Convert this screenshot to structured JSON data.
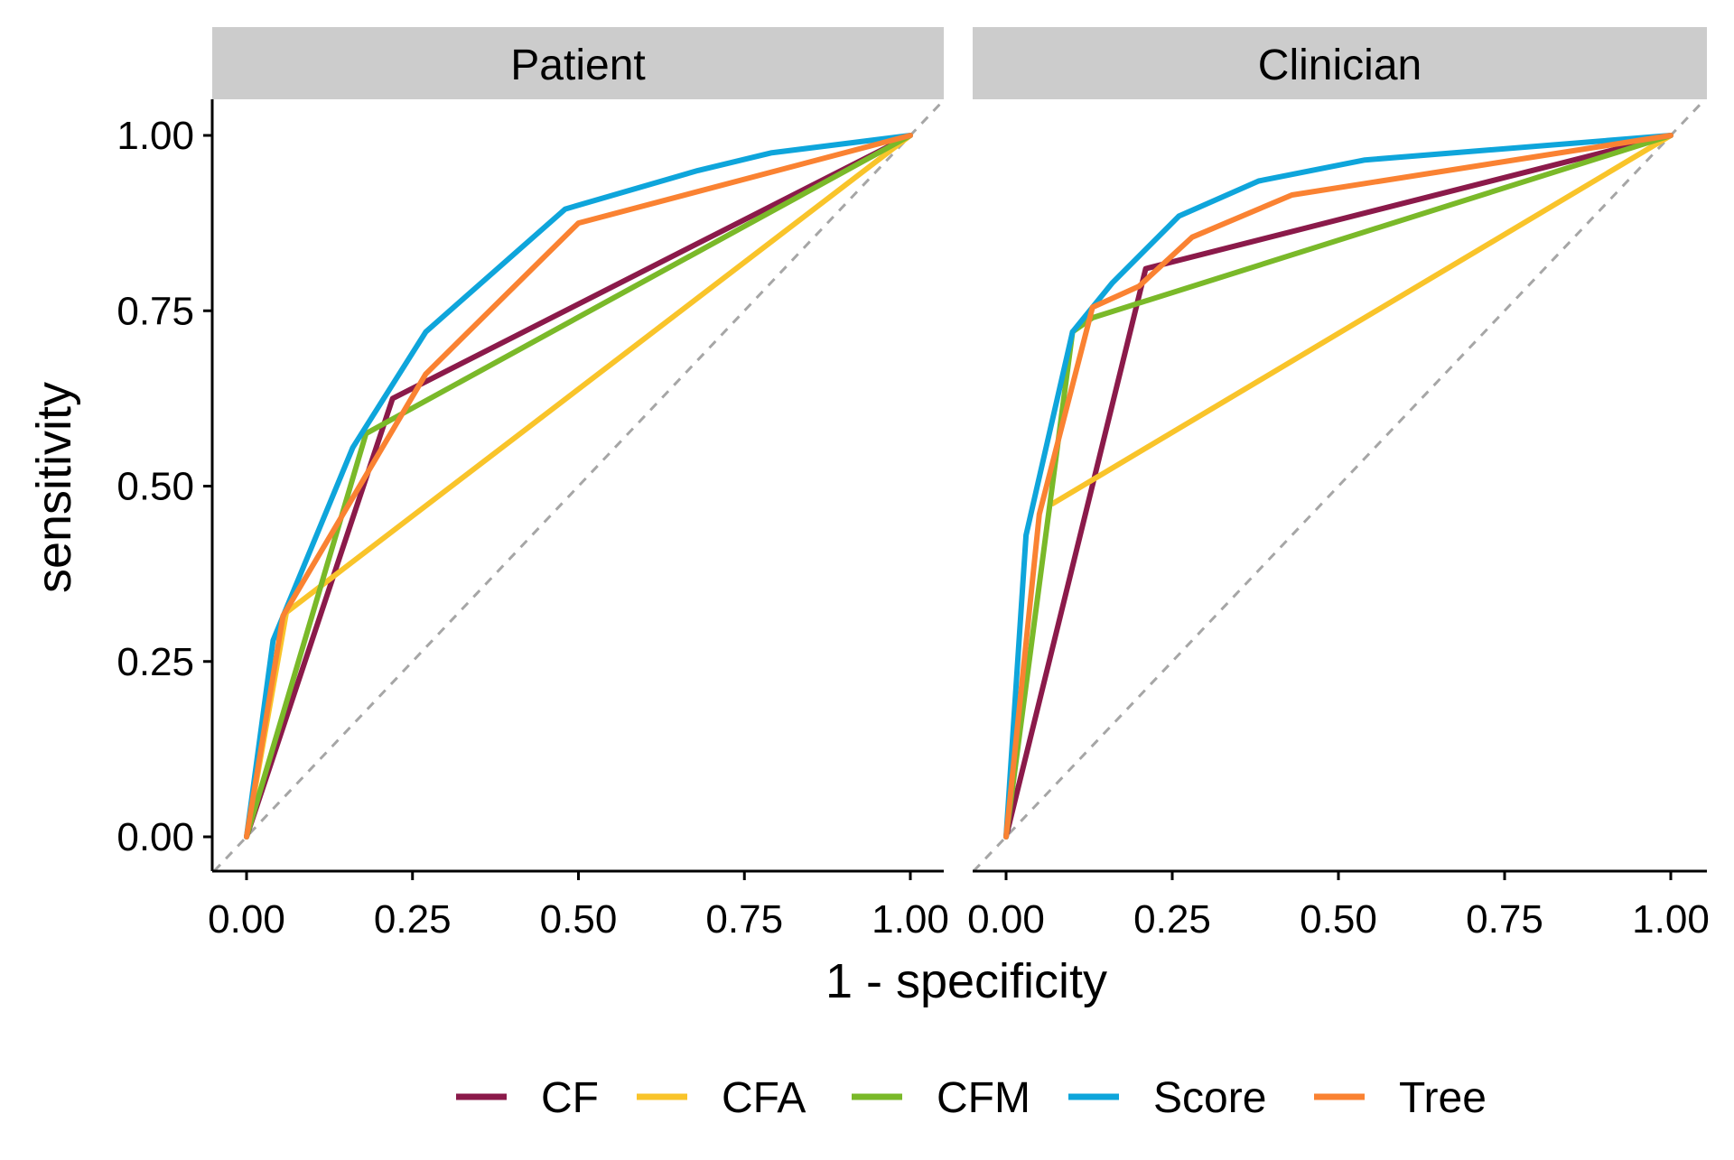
{
  "chart_data": {
    "type": "line",
    "xlabel": "1 - specificity",
    "ylabel": "sensitivity",
    "xlim": [
      0,
      1
    ],
    "ylim": [
      0,
      1
    ],
    "x_ticks": [
      "0.00",
      "0.25",
      "0.50",
      "0.75",
      "1.00"
    ],
    "y_ticks": [
      "0.00",
      "0.25",
      "0.50",
      "0.75",
      "1.00"
    ],
    "reference_line": "diagonal dashed",
    "legend_position": "bottom",
    "legend": [
      {
        "name": "CF",
        "color": "#8B1A4A"
      },
      {
        "name": "CFA",
        "color": "#F9C42A"
      },
      {
        "name": "CFM",
        "color": "#7AB929"
      },
      {
        "name": "Score",
        "color": "#0EA5DB"
      },
      {
        "name": "Tree",
        "color": "#FA8232"
      }
    ],
    "panels": [
      {
        "title": "Patient",
        "series": [
          {
            "name": "CF",
            "color": "#8B1A4A",
            "points": [
              [
                0,
                0
              ],
              [
                0.22,
                0.625
              ],
              [
                1,
                1
              ]
            ]
          },
          {
            "name": "CFA",
            "color": "#F9C42A",
            "points": [
              [
                0,
                0
              ],
              [
                0.06,
                0.32
              ],
              [
                1,
                1
              ]
            ]
          },
          {
            "name": "CFM",
            "color": "#7AB929",
            "points": [
              [
                0,
                0
              ],
              [
                0.18,
                0.575
              ],
              [
                1,
                1
              ]
            ]
          },
          {
            "name": "Score",
            "color": "#0EA5DB",
            "points": [
              [
                0,
                0
              ],
              [
                0.04,
                0.28
              ],
              [
                0.16,
                0.555
              ],
              [
                0.27,
                0.72
              ],
              [
                0.48,
                0.895
              ],
              [
                0.68,
                0.95
              ],
              [
                0.79,
                0.975
              ],
              [
                1,
                1
              ]
            ]
          },
          {
            "name": "Tree",
            "color": "#FA8232",
            "points": [
              [
                0,
                0
              ],
              [
                0.055,
                0.315
              ],
              [
                0.27,
                0.66
              ],
              [
                0.5,
                0.875
              ],
              [
                1,
                1
              ]
            ]
          }
        ]
      },
      {
        "title": "Clinician",
        "series": [
          {
            "name": "CF",
            "color": "#8B1A4A",
            "points": [
              [
                0,
                0
              ],
              [
                0.21,
                0.81
              ],
              [
                1,
                1
              ]
            ]
          },
          {
            "name": "CFA",
            "color": "#F9C42A",
            "points": [
              [
                0.07,
                0.475
              ],
              [
                1,
                1
              ]
            ]
          },
          {
            "name": "CFM",
            "color": "#7AB929",
            "points": [
              [
                0,
                0
              ],
              [
                0.1,
                0.72
              ],
              [
                0.13,
                0.74
              ],
              [
                1,
                1
              ]
            ]
          },
          {
            "name": "Score",
            "color": "#0EA5DB",
            "points": [
              [
                0,
                0
              ],
              [
                0.03,
                0.43
              ],
              [
                0.1,
                0.72
              ],
              [
                0.16,
                0.79
              ],
              [
                0.26,
                0.885
              ],
              [
                0.38,
                0.935
              ],
              [
                0.54,
                0.965
              ],
              [
                1,
                1
              ]
            ]
          },
          {
            "name": "Tree",
            "color": "#FA8232",
            "points": [
              [
                0,
                0
              ],
              [
                0.05,
                0.46
              ],
              [
                0.13,
                0.755
              ],
              [
                0.2,
                0.785
              ],
              [
                0.28,
                0.855
              ],
              [
                0.43,
                0.915
              ],
              [
                1,
                1
              ]
            ]
          }
        ]
      }
    ]
  }
}
